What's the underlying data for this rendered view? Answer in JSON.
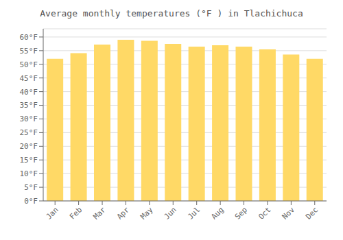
{
  "chart_data": {
    "type": "bar",
    "title": "Average monthly temperatures (°F ) in Tlachichuca",
    "categories": [
      "Jan",
      "Feb",
      "Mar",
      "Apr",
      "May",
      "Jun",
      "Jul",
      "Aug",
      "Sep",
      "Oct",
      "Nov",
      "Dec"
    ],
    "values": [
      52.0,
      54.1,
      57.2,
      59.0,
      58.6,
      57.5,
      56.5,
      57.0,
      56.5,
      55.5,
      53.6,
      52.0
    ],
    "color": "#FFD966",
    "ylim": [
      0,
      63
    ],
    "yticks": [
      {
        "value": 0,
        "label": "0°F"
      },
      {
        "value": 5,
        "label": "5°F"
      },
      {
        "value": 10,
        "label": "10°F"
      },
      {
        "value": 15,
        "label": "15°F"
      },
      {
        "value": 20,
        "label": "20°F"
      },
      {
        "value": 25,
        "label": "25°F"
      },
      {
        "value": 30,
        "label": "30°F"
      },
      {
        "value": 35,
        "label": "35°F"
      },
      {
        "value": 40,
        "label": "40°F"
      },
      {
        "value": 45,
        "label": "45°F"
      },
      {
        "value": 50,
        "label": "50°F"
      },
      {
        "value": 55,
        "label": "55°F"
      },
      {
        "value": 60,
        "label": "60°F"
      }
    ],
    "grid": true
  }
}
